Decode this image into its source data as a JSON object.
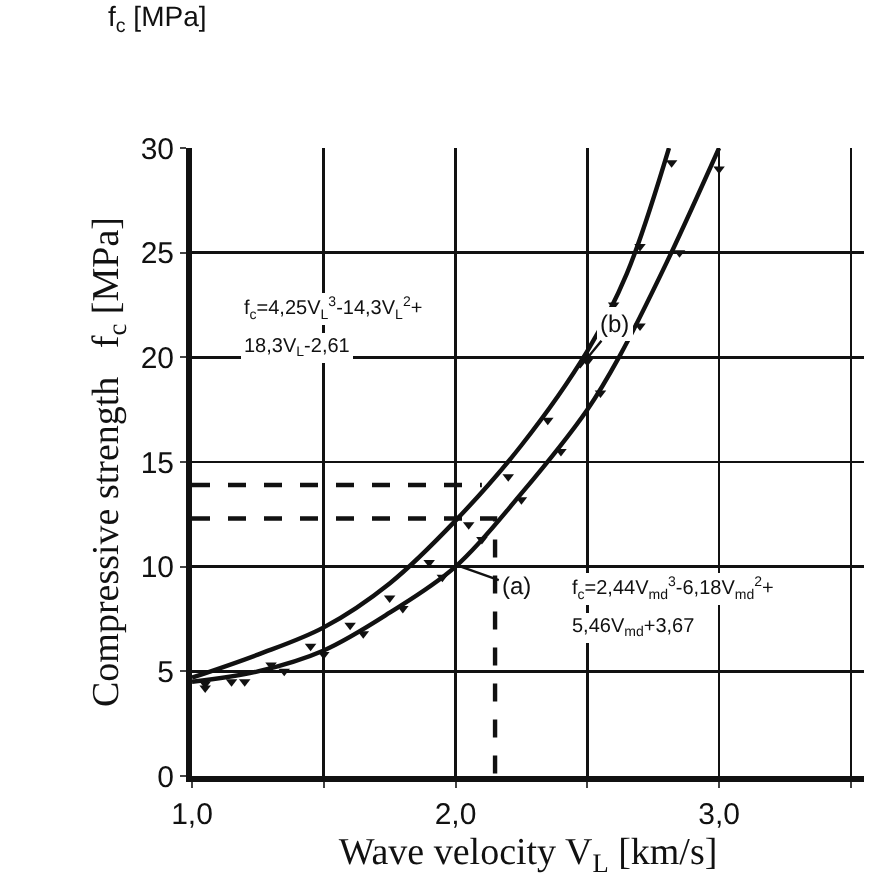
{
  "chart_data": {
    "type": "line",
    "xlabel": "Wave velocity V$_{L}$ [km/s]",
    "ylabel": "Compressive strength   f$_{c}$ [MPa]",
    "xlim": [
      1,
      3.55
    ],
    "xticks": [
      {
        "value": 1,
        "label": "1,0"
      },
      {
        "value": 1.5,
        "label": null
      },
      {
        "value": 2,
        "label": "2,0"
      },
      {
        "value": 2.5,
        "label": null
      },
      {
        "value": 3,
        "label": "3,0"
      },
      {
        "value": 3.5,
        "label": null
      }
    ],
    "ylim": [
      0,
      30
    ],
    "yticks": [
      0,
      5,
      10,
      15,
      20,
      25,
      30
    ],
    "grid": true,
    "series": [
      {
        "color": "#111111",
        "line_style": "solid",
        "marker": "none",
        "x": [
          1.0,
          1.25,
          1.5,
          1.75,
          2.0,
          2.25,
          2.5,
          2.65,
          2.81
        ],
        "values": [
          4.7,
          5.8,
          7.1,
          9.2,
          12.2,
          15.8,
          20.3,
          24,
          30
        ]
      },
      {
        "color": "#111111",
        "line_style": "solid",
        "marker": "none",
        "x": [
          1.0,
          1.25,
          1.5,
          1.75,
          2.0,
          2.25,
          2.5,
          2.62,
          2.8,
          3.0
        ],
        "values": [
          4.5,
          5.0,
          6.0,
          7.8,
          10.0,
          13.5,
          17.5,
          20,
          24.5,
          30
        ]
      },
      {
        "type": "scatter",
        "color": "#111111",
        "marker": "triangle",
        "x": [
          1.05,
          1.15,
          1.3,
          1.45,
          1.6,
          1.75,
          1.9,
          2.05,
          2.2,
          2.35,
          2.5,
          2.6,
          2.7,
          2.82
        ],
        "values": [
          4.4,
          4.5,
          5.3,
          6.2,
          7.2,
          8.5,
          10.2,
          12.0,
          14.3,
          17.0,
          19.8,
          22.5,
          25.3,
          29.3
        ]
      },
      {
        "type": "scatter",
        "color": "#111111",
        "marker": "triangle",
        "x": [
          1.05,
          1.2,
          1.35,
          1.5,
          1.65,
          1.8,
          1.95,
          2.1,
          2.25,
          2.4,
          2.55,
          2.7,
          2.85,
          3.0
        ],
        "values": [
          4.2,
          4.5,
          5.0,
          5.8,
          6.8,
          8.0,
          9.5,
          11.3,
          13.2,
          15.5,
          18.3,
          21.5,
          25,
          29
        ]
      },
      {
        "color": "#111111",
        "line_style": "dashed",
        "marker": "none",
        "x": [
          1.0,
          2.1
        ],
        "values": [
          13.9,
          13.9
        ]
      },
      {
        "color": "#111111",
        "line_style": "dashed",
        "marker": "none",
        "x": [
          1.0,
          2.15,
          2.15
        ],
        "values": [
          12.3,
          12.3,
          0
        ]
      }
    ],
    "annotations": [
      "f$_{c}$ [MPa]",
      "f$_{c}$=4,25V$_{L}$$^{3}$-14,3V$_{L}$$^{2}$+",
      "18,3V$_{L}$-2,61",
      "f$_{c}$=2,44V$_{md}$$^{3}$-6,18V$_{md}$$^{2}$+",
      "5,46V$_{md}$+3,67",
      {
        "text": "(b)",
        "x": 2.47,
        "y": 19.5
      },
      {
        "text": "(a)",
        "x": 2.02,
        "y": 10
      }
    ]
  }
}
